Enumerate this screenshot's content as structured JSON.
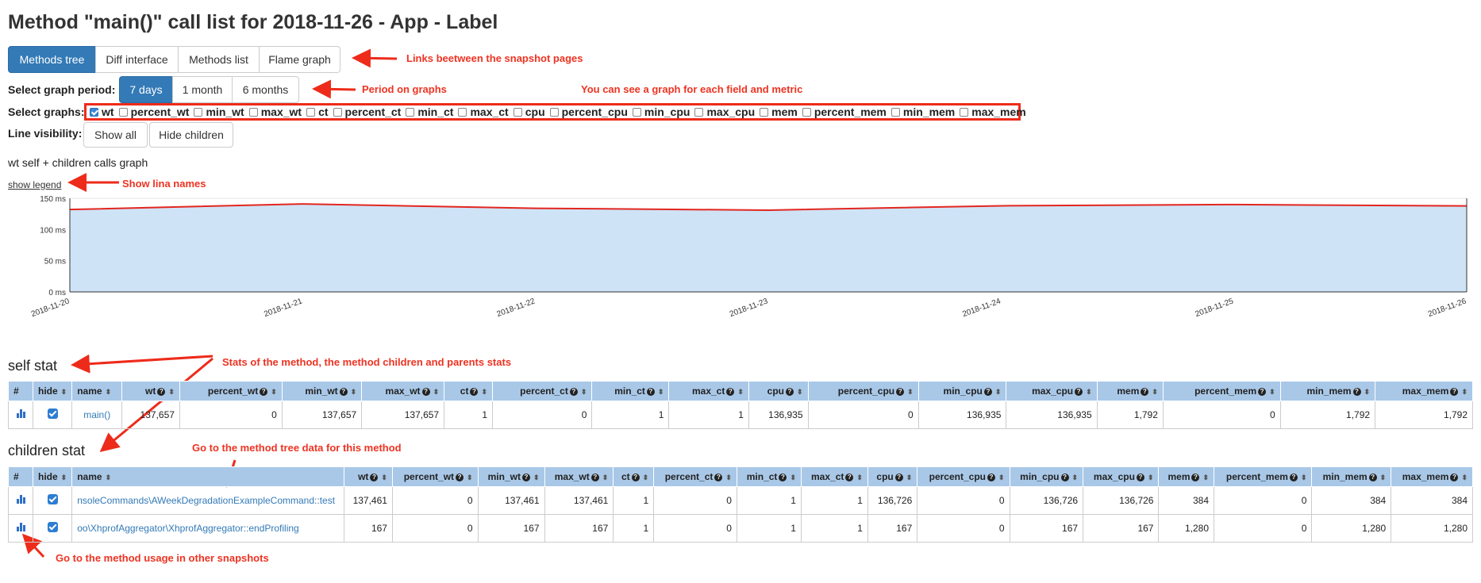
{
  "title": "Method \"main()\" call list for 2018-11-26 - App - Label",
  "nav_tabs": [
    {
      "label": "Methods tree",
      "active": true
    },
    {
      "label": "Diff interface",
      "active": false
    },
    {
      "label": "Methods list",
      "active": false
    },
    {
      "label": "Flame graph",
      "active": false
    }
  ],
  "period": {
    "label": "Select graph period:",
    "options": [
      {
        "label": "7 days",
        "active": true
      },
      {
        "label": "1 month",
        "active": false
      },
      {
        "label": "6 months",
        "active": false
      }
    ]
  },
  "graphs": {
    "label": "Select graphs:",
    "items": [
      {
        "label": "wt",
        "checked": true
      },
      {
        "label": "percent_wt",
        "checked": false
      },
      {
        "label": "min_wt",
        "checked": false
      },
      {
        "label": "max_wt",
        "checked": false
      },
      {
        "label": "ct",
        "checked": false
      },
      {
        "label": "percent_ct",
        "checked": false
      },
      {
        "label": "min_ct",
        "checked": false
      },
      {
        "label": "max_ct",
        "checked": false
      },
      {
        "label": "cpu",
        "checked": false
      },
      {
        "label": "percent_cpu",
        "checked": false
      },
      {
        "label": "min_cpu",
        "checked": false
      },
      {
        "label": "max_cpu",
        "checked": false
      },
      {
        "label": "mem",
        "checked": false
      },
      {
        "label": "percent_mem",
        "checked": false
      },
      {
        "label": "min_mem",
        "checked": false
      },
      {
        "label": "max_mem",
        "checked": false
      }
    ]
  },
  "visibility": {
    "label": "Line visibility:",
    "show_all": "Show all",
    "hide_children": "Hide children"
  },
  "graph_title": "wt self + children calls graph",
  "show_legend": "show legend",
  "annotations": {
    "links": "Links beetween the snapshot pages",
    "period": "Period on graphs",
    "fields": "You can see a graph for each field and metric",
    "legend": "Show lina names",
    "stats": "Stats of the method, the method children and parents stats",
    "tree": "Go to the method tree data for this method",
    "usage": "Go to the method usage in other snapshots"
  },
  "colors": {
    "accent": "#337ab7",
    "annotation": "#ee3322",
    "area_fill": "#cfe3f6",
    "line": "#e3261f",
    "header": "#a9c8e8"
  },
  "chart_data": {
    "type": "area",
    "x": [
      "2018-11-20",
      "2018-11-21",
      "2018-11-22",
      "2018-11-23",
      "2018-11-24",
      "2018-11-25",
      "2018-11-26"
    ],
    "series": [
      {
        "values": [
          132,
          141,
          134,
          131,
          138,
          140,
          137.7
        ]
      }
    ],
    "y_ticks": [
      "0 ms",
      "50 ms",
      "100 ms",
      "150 ms"
    ],
    "ylim": [
      0,
      150
    ],
    "grid": true
  },
  "self_stat": {
    "heading": "self stat",
    "columns": [
      "#",
      "hide",
      "name",
      "wt",
      "percent_wt",
      "min_wt",
      "max_wt",
      "ct",
      "percent_ct",
      "min_ct",
      "max_ct",
      "cpu",
      "percent_cpu",
      "min_cpu",
      "max_cpu",
      "mem",
      "percent_mem",
      "min_mem",
      "max_mem"
    ],
    "rows": [
      {
        "name": "main()",
        "values": [
          "137,657",
          "0",
          "137,657",
          "137,657",
          "1",
          "0",
          "1",
          "1",
          "136,935",
          "0",
          "136,935",
          "136,935",
          "1,792",
          "0",
          "1,792",
          "1,792"
        ]
      }
    ]
  },
  "children_stat": {
    "heading": "children stat",
    "columns": [
      "#",
      "hide",
      "name",
      "wt",
      "percent_wt",
      "min_wt",
      "max_wt",
      "ct",
      "percent_ct",
      "min_ct",
      "max_ct",
      "cpu",
      "percent_cpu",
      "min_cpu",
      "max_cpu",
      "mem",
      "percent_mem",
      "min_mem",
      "max_mem"
    ],
    "rows": [
      {
        "name": "nsoleCommands\\AWeekDegradationExampleCommand::test",
        "values": [
          "137,461",
          "0",
          "137,461",
          "137,461",
          "1",
          "0",
          "1",
          "1",
          "136,726",
          "0",
          "136,726",
          "136,726",
          "384",
          "0",
          "384",
          "384"
        ]
      },
      {
        "name": "oo\\XhprofAggregator\\XhprofAggregator::endProfiling",
        "values": [
          "167",
          "0",
          "167",
          "167",
          "1",
          "0",
          "1",
          "1",
          "167",
          "0",
          "167",
          "167",
          "1,280",
          "0",
          "1,280",
          "1,280"
        ]
      }
    ]
  }
}
